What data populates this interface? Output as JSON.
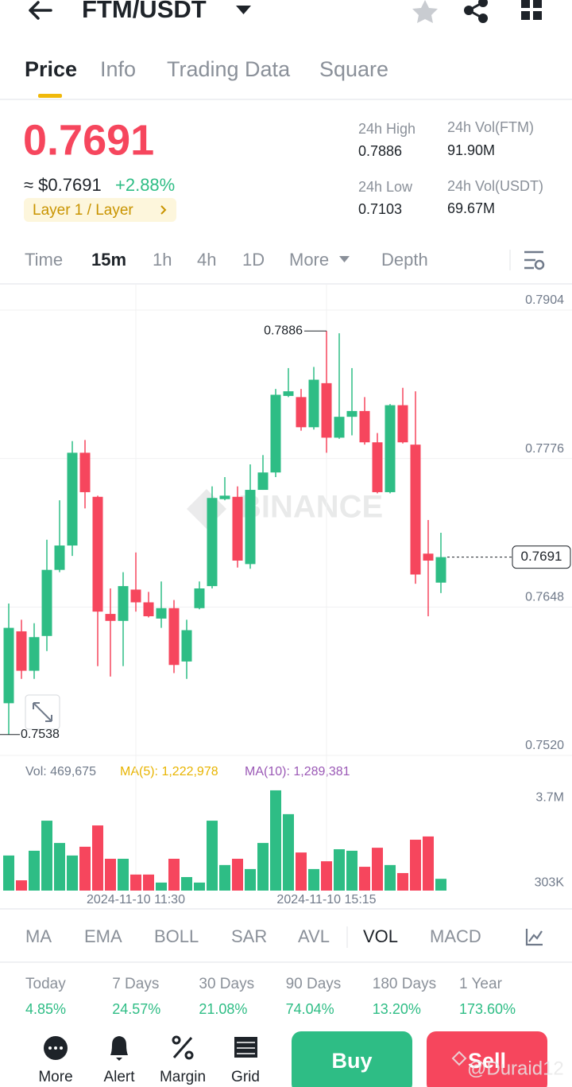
{
  "header": {
    "pair": "FTM/USDT"
  },
  "tabs": [
    "Price",
    "Info",
    "Trading Data",
    "Square"
  ],
  "ticker": {
    "price": "0.7691",
    "usd_price": "≈ $0.7691",
    "change": "+2.88%",
    "tag": "Layer 1 / Layer",
    "stats": [
      {
        "label": "24h High",
        "value": "0.7886"
      },
      {
        "label": "24h Vol(FTM)",
        "value": "91.90M"
      },
      {
        "label": "24h Low",
        "value": "0.7103"
      },
      {
        "label": "24h Vol(USDT)",
        "value": "69.67M"
      }
    ]
  },
  "intervals": [
    "Time",
    "15m",
    "1h",
    "4h",
    "1D",
    "More",
    "Depth"
  ],
  "chart_data": [
    {
      "type": "candlestick",
      "watermark": "BINANCE",
      "categories": [
        null,
        null,
        null,
        null,
        null,
        null,
        null,
        null,
        null,
        null,
        "2024-11-10 11:30",
        null,
        null,
        null,
        null,
        null,
        null,
        null,
        null,
        null,
        null,
        null,
        null,
        null,
        null,
        "2024-11-10 15:15",
        null,
        null,
        null,
        null,
        null,
        null,
        null,
        null,
        null
      ],
      "open": [
        0.7565,
        0.7627,
        0.7593,
        0.7623,
        0.768,
        0.7701,
        0.7781,
        0.7743,
        0.7642,
        0.7636,
        0.7663,
        0.7652,
        0.7638,
        0.7647,
        0.7601,
        0.7647,
        0.7666,
        0.7741,
        0.7743,
        0.7685,
        0.7749,
        0.7764,
        0.783,
        0.7829,
        0.7803,
        0.7841,
        0.7794,
        0.7812,
        0.7817,
        0.779,
        0.7747,
        0.7822,
        0.7788,
        0.7694,
        0.7669
      ],
      "high": [
        0.7651,
        0.7637,
        0.7634,
        0.7706,
        0.774,
        0.7791,
        0.7792,
        0.7744,
        0.7664,
        0.7678,
        0.7695,
        0.7661,
        0.767,
        0.7654,
        0.7637,
        0.767,
        0.7752,
        0.776,
        0.7752,
        0.7771,
        0.7779,
        0.7836,
        0.7854,
        0.7836,
        0.7855,
        0.7886,
        0.7884,
        0.7854,
        0.7829,
        0.7798,
        0.7823,
        0.7837,
        0.7834,
        0.7723,
        0.7712
      ],
      "low": [
        0.7538,
        0.7586,
        0.7586,
        0.761,
        0.7678,
        0.7692,
        0.7733,
        0.7597,
        0.7588,
        0.7597,
        0.7644,
        0.7639,
        0.763,
        0.7591,
        0.7586,
        0.7646,
        0.7664,
        0.774,
        0.7682,
        0.7681,
        0.7749,
        0.776,
        0.7829,
        0.78,
        0.7801,
        0.7781,
        0.7793,
        0.7796,
        0.7788,
        0.7746,
        0.7746,
        0.7789,
        0.7668,
        0.764,
        0.766
      ],
      "close": [
        0.763,
        0.7593,
        0.7622,
        0.768,
        0.7701,
        0.7781,
        0.7747,
        0.7644,
        0.7636,
        0.7666,
        0.7652,
        0.764,
        0.7647,
        0.7598,
        0.7628,
        0.7664,
        0.7742,
        0.7744,
        0.7688,
        0.7749,
        0.7764,
        0.7831,
        0.7834,
        0.7803,
        0.7844,
        0.7794,
        0.7812,
        0.7817,
        0.779,
        0.7747,
        0.7822,
        0.779,
        0.7676,
        0.7688,
        0.7691
      ],
      "up_color": "#2ebd85",
      "down_color": "#f6465d",
      "ylim": [
        0.752,
        0.7904
      ],
      "yticks": [
        {
          "value": 0.752,
          "label": "0.7520"
        },
        0.7648,
        0.7776,
        0.7904
      ],
      "grid": true
    },
    {
      "type": "bar",
      "legend": [
        "Vol: 469,675",
        "MA(5): 1,222,978",
        "MA(10): 1,289,381"
      ],
      "legend_colors": [
        "#707a8a",
        "#e8b400",
        "#9b59b6"
      ],
      "values": [
        1400000,
        410000,
        1590000,
        2790000,
        1900000,
        1400000,
        1750000,
        2600000,
        1270000,
        1270000,
        640000,
        640000,
        320000,
        1270000,
        540000,
        320000,
        2790000,
        1020000,
        1270000,
        860000,
        1900000,
        4000000,
        3050000,
        1520000,
        860000,
        1170000,
        1650000,
        1590000,
        950000,
        1710000,
        1020000,
        700000,
        2030000,
        2160000,
        469675
      ],
      "ylim": [
        0,
        5140000
      ],
      "yticks": [
        {
          "value": 3700000,
          "label": "3.7M"
        },
        {
          "value": 303000,
          "label": "303K"
        }
      ]
    }
  ],
  "indicators": [
    "MA",
    "EMA",
    "BOLL",
    "SAR",
    "AVL",
    "VOL",
    "MACD"
  ],
  "performance": [
    {
      "label": "Today",
      "value": "4.85%"
    },
    {
      "label": "7 Days",
      "value": "24.57%"
    },
    {
      "label": "30 Days",
      "value": "21.08%"
    },
    {
      "label": "90 Days",
      "value": "74.04%"
    },
    {
      "label": "180 Days",
      "value": "13.20%"
    },
    {
      "label": "1 Year",
      "value": "173.60%"
    }
  ],
  "nav": [
    "More",
    "Alert",
    "Margin",
    "Grid"
  ],
  "buttons": {
    "buy": "Buy",
    "sell": "Sell"
  },
  "watermark": "@Duraid12"
}
